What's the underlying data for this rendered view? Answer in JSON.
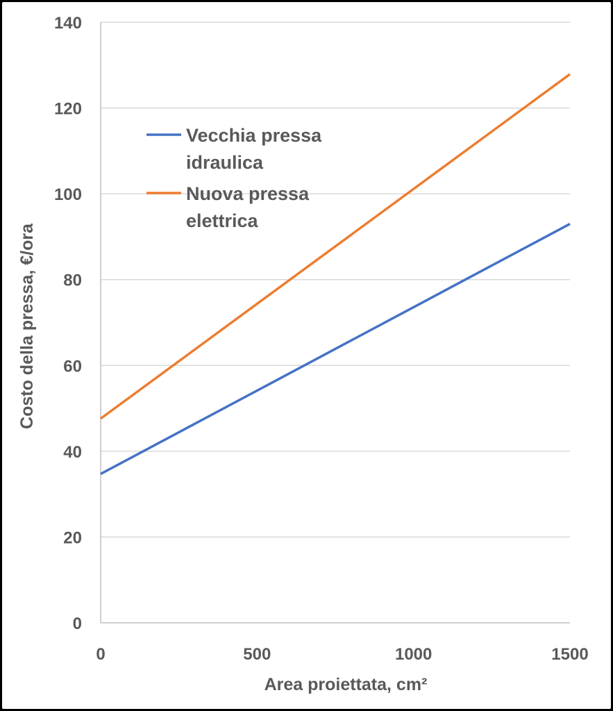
{
  "chart_data": {
    "type": "line",
    "xlabel": "Area proiettata, cm²",
    "ylabel": "Costo della pressa, €/ora",
    "xlim": [
      0,
      1500
    ],
    "ylim": [
      0,
      140
    ],
    "x_ticks": [
      0,
      500,
      1000,
      1500
    ],
    "y_ticks": [
      0,
      20,
      40,
      60,
      80,
      100,
      120,
      140
    ],
    "grid": "horizontal",
    "legend_position": "top-left",
    "series": [
      {
        "name": "Vecchia pressa idraulica",
        "name_lines": [
          "Vecchia pressa",
          "idraulica"
        ],
        "color": "#4472C4",
        "x": [
          0,
          1500
        ],
        "y": [
          34.7,
          93.0
        ]
      },
      {
        "name": "Nuova pressa elettrica",
        "name_lines": [
          "Nuova pressa",
          "elettrica"
        ],
        "color": "#ED7D31",
        "x": [
          0,
          1500
        ],
        "y": [
          47.6,
          127.9
        ]
      }
    ]
  }
}
